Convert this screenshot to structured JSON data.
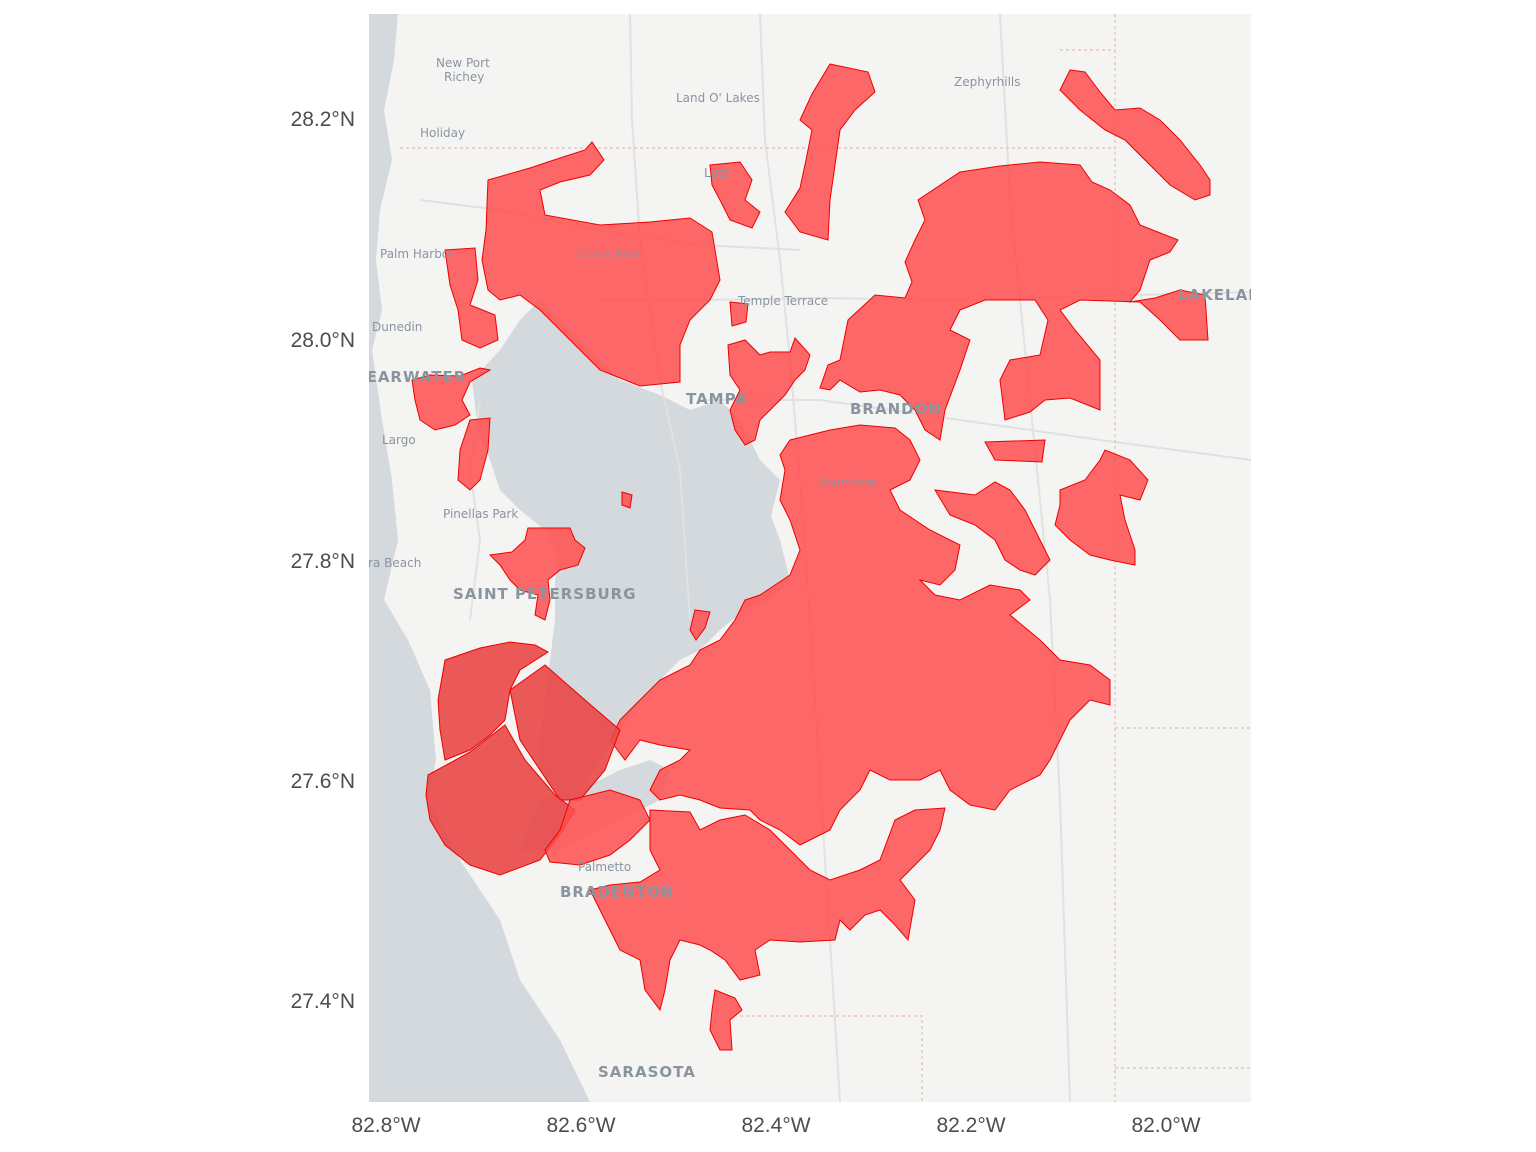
{
  "map": {
    "x_ticks": [
      "82.8°W",
      "82.6°W",
      "82.4°W",
      "82.2°W",
      "82.0°W"
    ],
    "y_ticks": [
      "28.2°N",
      "28.0°N",
      "27.8°N",
      "27.6°N",
      "27.4°N"
    ],
    "extent": {
      "lon_range": [
        -82.83,
        -81.92
      ],
      "lat_range": [
        27.31,
        28.29
      ]
    },
    "basemap": {
      "style": "light-gray",
      "land_color": "#f4f4f3",
      "water_color": "#d4d9dd"
    },
    "overlay": {
      "fill_color": "#ff4d4d",
      "stroke_color": "#ee0000",
      "description_shapes": "red filled zip/tract polygons"
    },
    "places": {
      "new_port_richey_1": "New Port",
      "new_port_richey_2": "Richey",
      "holiday": "Holiday",
      "land_o_lakes": "Land O' Lakes",
      "zephyrhills": "Zephyrhills",
      "palm_harbor": "Palm Harbor",
      "citrus_park": "Citrus Park",
      "lutz": "Lutz",
      "temple_terrace": "Temple Terrace",
      "lakeland": "LAKELAND",
      "dunedin": "Dunedin",
      "clearwater": "CLEARWATER",
      "tampa": "TAMPA",
      "brandon": "BRANDON",
      "largo": "Largo",
      "riverview": "Riverview",
      "pinellas_park": "Pinellas Park",
      "madeira_beach": "Madeira Beach",
      "saint_petersburg": "SAINT PETERSBURG",
      "palmetto": "Palmetto",
      "bradenton": "BRADENTON",
      "sarasota": "SARASOTA"
    }
  }
}
